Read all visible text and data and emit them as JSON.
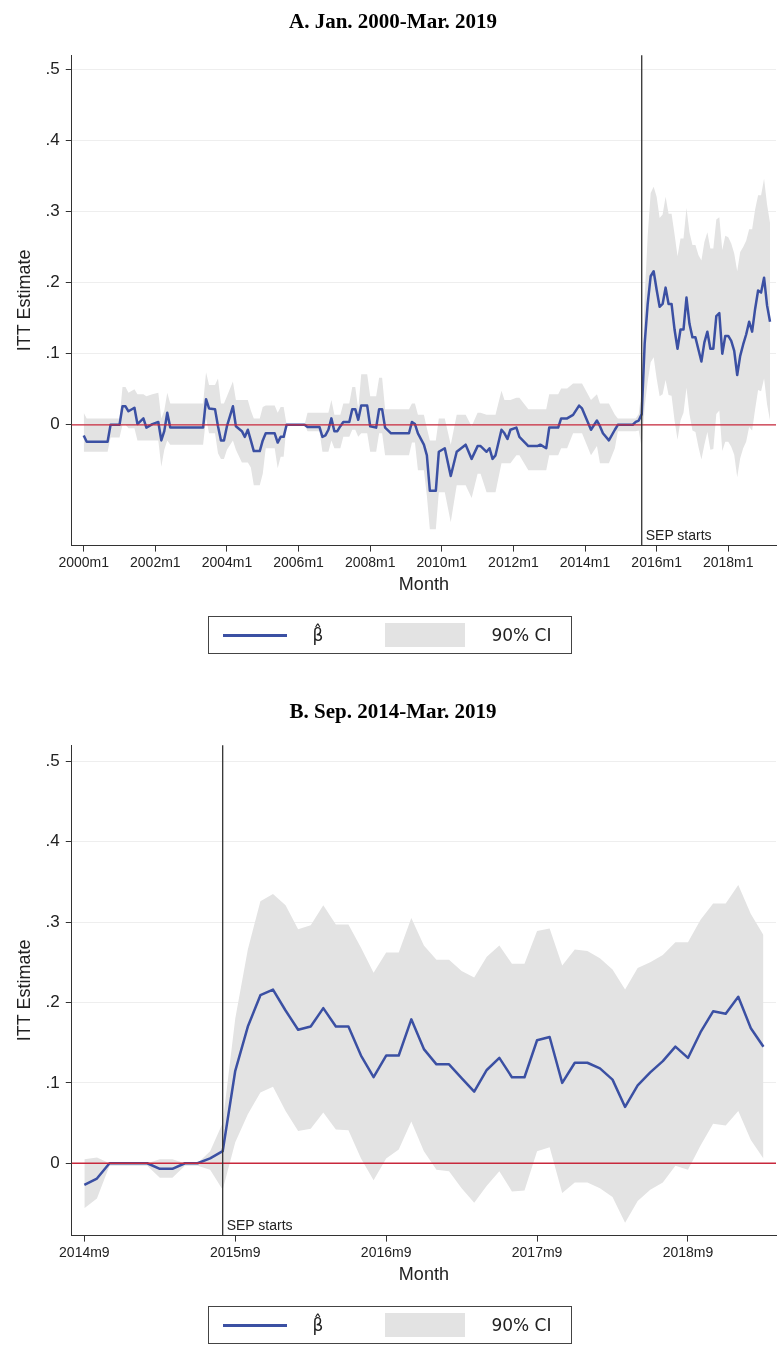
{
  "chart_data": [
    {
      "type": "line",
      "title": "A. Jan. 2000-Mar. 2019",
      "xlabel": "Month",
      "ylabel": "ITT Estimate",
      "grid": "y",
      "legend": "bottom",
      "annotations": [
        "90% CI"
      ],
      "xlim": [
        "1999-09",
        "2019-05"
      ],
      "ylim": [
        -0.17,
        0.52
      ],
      "xticks": [
        {
          "value": "2000-01",
          "label": "2000m1"
        },
        {
          "value": "2002-01",
          "label": "2002m1"
        },
        {
          "value": "2004-01",
          "label": "2004m1"
        },
        {
          "value": "2006-01",
          "label": "2006m1"
        },
        {
          "value": "2008-01",
          "label": "2008m1"
        },
        {
          "value": "2010-01",
          "label": "2010m1"
        },
        {
          "value": "2012-01",
          "label": "2012m1"
        },
        {
          "value": "2014-01",
          "label": "2014m1"
        },
        {
          "value": "2016-01",
          "label": "2016m1"
        },
        {
          "value": "2018-01",
          "label": "2018m1"
        }
      ],
      "yticks": [
        {
          "value": 0,
          "label": "0"
        },
        {
          "value": 0.1,
          "label": ".1"
        },
        {
          "value": 0.2,
          "label": ".2"
        },
        {
          "value": 0.3,
          "label": ".3"
        },
        {
          "value": 0.4,
          "label": ".4"
        },
        {
          "value": 0.5,
          "label": ".5"
        }
      ],
      "ref_lines": [
        {
          "axis": "y",
          "value": 0,
          "color": "#c8283c"
        },
        {
          "axis": "x",
          "value": "2015-08",
          "label": "SEP starts",
          "color": "#333333"
        }
      ],
      "series": [
        {
          "name": "β̂",
          "type": "line",
          "color": "#3b50a3",
          "x": [
            "2000-01",
            "2000-02",
            "2000-09",
            "2000-10",
            "2001-01",
            "2001-02",
            "2001-03",
            "2001-04",
            "2001-06",
            "2001-07",
            "2001-09",
            "2001-10",
            "2001-12",
            "2002-02",
            "2002-03",
            "2002-04",
            "2002-05",
            "2002-06",
            "2003-05",
            "2003-06",
            "2003-07",
            "2003-09",
            "2003-10",
            "2003-11",
            "2003-12",
            "2004-01",
            "2004-03",
            "2004-04",
            "2004-06",
            "2004-07",
            "2004-08",
            "2004-09",
            "2004-10",
            "2004-12",
            "2005-01",
            "2005-02",
            "2005-05",
            "2005-06",
            "2005-07",
            "2005-08",
            "2005-09",
            "2006-03",
            "2006-04",
            "2006-08",
            "2006-09",
            "2006-10",
            "2006-11",
            "2006-12",
            "2007-01",
            "2007-02",
            "2007-03",
            "2007-04",
            "2007-06",
            "2007-07",
            "2007-08",
            "2007-09",
            "2007-10",
            "2007-12",
            "2008-01",
            "2008-03",
            "2008-04",
            "2008-05",
            "2008-06",
            "2008-08",
            "2009-02",
            "2009-03",
            "2009-04",
            "2009-05",
            "2009-07",
            "2009-08",
            "2009-09",
            "2009-11",
            "2009-12",
            "2010-02",
            "2010-04",
            "2010-06",
            "2010-09",
            "2010-11",
            "2011-01",
            "2011-02",
            "2011-04",
            "2011-05",
            "2011-06",
            "2011-07",
            "2011-09",
            "2011-10",
            "2011-11",
            "2011-12",
            "2012-02",
            "2012-03",
            "2012-06",
            "2012-09",
            "2012-10",
            "2012-12",
            "2013-01",
            "2013-04",
            "2013-05",
            "2013-07",
            "2013-09",
            "2013-11",
            "2013-12",
            "2014-03",
            "2014-05",
            "2014-06",
            "2014-07",
            "2014-09",
            "2014-11",
            "2014-12",
            "2015-05",
            "2015-06",
            "2015-07",
            "2015-08",
            "2015-09",
            "2015-10",
            "2015-11",
            "2015-12",
            "2016-01",
            "2016-02",
            "2016-03",
            "2016-04",
            "2016-05",
            "2016-06",
            "2016-07",
            "2016-08",
            "2016-09",
            "2016-10",
            "2016-11",
            "2016-12",
            "2017-01",
            "2017-02",
            "2017-03",
            "2017-04",
            "2017-05",
            "2017-06",
            "2017-07",
            "2017-08",
            "2017-09",
            "2017-10",
            "2017-11",
            "2017-12",
            "2018-01",
            "2018-02",
            "2018-03",
            "2018-04",
            "2018-05",
            "2018-06",
            "2018-07",
            "2018-08",
            "2018-09",
            "2018-10",
            "2018-11",
            "2018-12",
            "2019-01",
            "2019-02",
            "2019-03"
          ],
          "values": [
            -0.015,
            -0.024,
            -0.024,
            0,
            0,
            0.026,
            0.026,
            0.019,
            0.024,
            0.001,
            0.009,
            -0.004,
            0.001,
            0.004,
            -0.022,
            -0.009,
            0.017,
            -0.004,
            -0.004,
            0.036,
            0.023,
            0.022,
            -0.002,
            -0.022,
            -0.022,
            -0.002,
            0.026,
            -0.002,
            -0.009,
            -0.017,
            -0.007,
            -0.022,
            -0.037,
            -0.037,
            -0.022,
            -0.012,
            -0.012,
            -0.025,
            -0.017,
            -0.017,
            0,
            0,
            -0.003,
            -0.003,
            -0.017,
            -0.015,
            -0.007,
            0.009,
            -0.009,
            -0.009,
            -0.002,
            0.004,
            0.004,
            0.022,
            0.022,
            0.007,
            0.027,
            0.027,
            -0.002,
            -0.004,
            0.022,
            0.022,
            -0.004,
            -0.012,
            -0.012,
            0.004,
            0.001,
            -0.012,
            -0.028,
            -0.043,
            -0.093,
            -0.093,
            -0.038,
            -0.033,
            -0.072,
            -0.038,
            -0.028,
            -0.048,
            -0.03,
            -0.03,
            -0.038,
            -0.033,
            -0.048,
            -0.043,
            -0.007,
            -0.012,
            -0.02,
            -0.007,
            -0.004,
            -0.017,
            -0.03,
            -0.03,
            -0.028,
            -0.033,
            -0.004,
            -0.004,
            0.009,
            0.009,
            0.014,
            0.027,
            0.023,
            -0.007,
            0.006,
            -0.002,
            -0.012,
            -0.022,
            -0.007,
            0,
            0,
            0.004,
            0.006,
            0.015,
            0.115,
            0.17,
            0.209,
            0.216,
            0.19,
            0.166,
            0.17,
            0.193,
            0.17,
            0.17,
            0.134,
            0.107,
            0.134,
            0.134,
            0.179,
            0.142,
            0.123,
            0.123,
            0.106,
            0.089,
            0.116,
            0.131,
            0.107,
            0.107,
            0.153,
            0.157,
            0.1,
            0.125,
            0.125,
            0.118,
            0.104,
            0.07,
            0.097,
            0.113,
            0.127,
            0.145,
            0.131,
            0.163,
            0.189,
            0.186,
            0.207,
            0.168,
            0.145
          ],
          "lower": [
            -0.038,
            -0.038,
            -0.038,
            -0.018,
            -0.018,
            0,
            0,
            -0.005,
            -0.005,
            -0.022,
            -0.022,
            -0.022,
            -0.022,
            -0.022,
            -0.059,
            -0.035,
            -0.022,
            -0.028,
            -0.028,
            0.009,
            -0.012,
            -0.012,
            -0.04,
            -0.048,
            -0.048,
            -0.035,
            -0.022,
            -0.035,
            -0.053,
            -0.053,
            -0.053,
            -0.06,
            -0.085,
            -0.085,
            -0.069,
            -0.033,
            -0.033,
            -0.061,
            -0.045,
            -0.045,
            0,
            0,
            -0.009,
            -0.009,
            -0.038,
            -0.038,
            -0.038,
            -0.022,
            -0.033,
            -0.033,
            -0.033,
            -0.017,
            -0.017,
            -0.007,
            -0.007,
            -0.017,
            -0.012,
            -0.012,
            -0.038,
            -0.038,
            -0.012,
            -0.012,
            -0.043,
            -0.043,
            -0.043,
            -0.025,
            -0.025,
            -0.064,
            -0.064,
            -0.1,
            -0.147,
            -0.147,
            -0.095,
            -0.095,
            -0.137,
            -0.085,
            -0.085,
            -0.103,
            -0.069,
            -0.069,
            -0.095,
            -0.095,
            -0.095,
            -0.095,
            -0.054,
            -0.054,
            -0.054,
            -0.054,
            -0.043,
            -0.043,
            -0.064,
            -0.064,
            -0.064,
            -0.064,
            -0.043,
            -0.043,
            -0.033,
            -0.033,
            -0.012,
            -0.012,
            -0.012,
            -0.043,
            -0.03,
            -0.054,
            -0.054,
            -0.054,
            -0.033,
            -0.009,
            -0.009,
            -0.009,
            -0.008,
            -0.033,
            0.026,
            0.061,
            0.088,
            0.095,
            0.065,
            0.04,
            0.043,
            0.063,
            0.042,
            0.041,
            0.006,
            -0.021,
            0.006,
            0.017,
            0.052,
            0.015,
            -0.008,
            -0.01,
            -0.031,
            -0.049,
            -0.028,
            -0.01,
            -0.035,
            -0.034,
            0.015,
            0.02,
            -0.037,
            -0.024,
            -0.024,
            -0.031,
            -0.042,
            -0.074,
            -0.047,
            -0.033,
            -0.024,
            -0.003,
            -0.008,
            0.022,
            0.049,
            0.047,
            0.065,
            0.029,
            0.006
          ],
          "upper": [
            0.017,
            0.009,
            0.009,
            0.009,
            0.009,
            0.053,
            0.053,
            0.045,
            0.05,
            0.043,
            0.043,
            0.04,
            0.043,
            0.045,
            0.009,
            0.02,
            0.045,
            0.03,
            0.03,
            0.074,
            0.056,
            0.056,
            0.065,
            0.03,
            0.03,
            0.04,
            0.061,
            0.035,
            0.035,
            0.035,
            0.035,
            0.02,
            0.009,
            0.009,
            0.025,
            0.027,
            0.027,
            0.017,
            0.025,
            0.025,
            0,
            0,
            0.017,
            0.017,
            0.017,
            0.017,
            0.017,
            0.035,
            0.014,
            0.014,
            0.014,
            0.03,
            0.03,
            0.053,
            0.053,
            0.022,
            0.071,
            0.071,
            0.04,
            0.04,
            0.066,
            0.066,
            0.022,
            0.022,
            0.022,
            0.03,
            0.03,
            0.014,
            0.014,
            -0.005,
            -0.022,
            -0.022,
            0.009,
            0.009,
            -0.028,
            0.014,
            0.014,
            -0.002,
            0.017,
            0.017,
            0.014,
            0.014,
            0.014,
            0.014,
            0.048,
            0.035,
            0.035,
            0.035,
            0.038,
            0.038,
            0.022,
            0.022,
            0.022,
            0.022,
            0.043,
            0.043,
            0.051,
            0.051,
            0.058,
            0.058,
            0.058,
            0.035,
            0.043,
            0.03,
            0.03,
            0.03,
            0.014,
            0.009,
            0.009,
            0.009,
            0.015,
            0.05,
            0.18,
            0.266,
            0.326,
            0.335,
            0.321,
            0.291,
            0.296,
            0.321,
            0.297,
            0.297,
            0.268,
            0.237,
            0.262,
            0.262,
            0.305,
            0.271,
            0.253,
            0.253,
            0.239,
            0.231,
            0.257,
            0.271,
            0.248,
            0.248,
            0.289,
            0.292,
            0.246,
            0.266,
            0.264,
            0.255,
            0.241,
            0.216,
            0.243,
            0.25,
            0.259,
            0.275,
            0.275,
            0.303,
            0.323,
            0.323,
            0.346,
            0.31,
            0.284
          ]
        }
      ]
    },
    {
      "type": "line",
      "title": "B. Sep. 2014-Mar. 2019",
      "xlabel": "Month",
      "ylabel": "ITT Estimate",
      "grid": "y",
      "legend": "bottom",
      "annotations": [
        "90% CI"
      ],
      "xlim": [
        "2014-08",
        "2019-04"
      ],
      "ylim": [
        -0.09,
        0.52
      ],
      "xticks": [
        {
          "value": "2014-09",
          "label": "2014m9"
        },
        {
          "value": "2015-09",
          "label": "2015m9"
        },
        {
          "value": "2016-09",
          "label": "2016m9"
        },
        {
          "value": "2017-09",
          "label": "2017m9"
        },
        {
          "value": "2018-09",
          "label": "2018m9"
        }
      ],
      "yticks": [
        {
          "value": 0,
          "label": "0"
        },
        {
          "value": 0.1,
          "label": ".1"
        },
        {
          "value": 0.2,
          "label": ".2"
        },
        {
          "value": 0.3,
          "label": ".3"
        },
        {
          "value": 0.4,
          "label": ".4"
        },
        {
          "value": 0.5,
          "label": ".5"
        }
      ],
      "ref_lines": [
        {
          "axis": "y",
          "value": 0,
          "color": "#c8283c"
        },
        {
          "axis": "x",
          "value": "2015-08",
          "label": "SEP starts",
          "color": "#333333"
        }
      ],
      "series": [
        {
          "name": "β̂",
          "type": "line",
          "color": "#3b50a3",
          "x": [
            "2014-09",
            "2014-10",
            "2014-11",
            "2014-12",
            "2015-01",
            "2015-02",
            "2015-03",
            "2015-04",
            "2015-05",
            "2015-06",
            "2015-07",
            "2015-08",
            "2015-09",
            "2015-10",
            "2015-11",
            "2015-12",
            "2016-01",
            "2016-02",
            "2016-03",
            "2016-04",
            "2016-05",
            "2016-06",
            "2016-07",
            "2016-08",
            "2016-09",
            "2016-10",
            "2016-11",
            "2016-12",
            "2017-01",
            "2017-02",
            "2017-03",
            "2017-04",
            "2017-05",
            "2017-06",
            "2017-07",
            "2017-08",
            "2017-09",
            "2017-10",
            "2017-11",
            "2017-12",
            "2018-01",
            "2018-02",
            "2018-03",
            "2018-04",
            "2018-05",
            "2018-06",
            "2018-07",
            "2018-08",
            "2018-09",
            "2018-10",
            "2018-11",
            "2018-12",
            "2019-01",
            "2019-02",
            "2019-03"
          ],
          "values": [
            -0.027,
            -0.019,
            0,
            0,
            0,
            0,
            -0.007,
            -0.007,
            0,
            0,
            0.006,
            0.015,
            0.115,
            0.17,
            0.209,
            0.216,
            0.19,
            0.166,
            0.17,
            0.193,
            0.17,
            0.17,
            0.134,
            0.107,
            0.134,
            0.134,
            0.179,
            0.142,
            0.123,
            0.123,
            0.106,
            0.089,
            0.116,
            0.131,
            0.107,
            0.107,
            0.153,
            0.157,
            0.1,
            0.125,
            0.125,
            0.118,
            0.104,
            0.07,
            0.097,
            0.113,
            0.127,
            0.145,
            0.131,
            0.163,
            0.189,
            0.186,
            0.207,
            0.168,
            0.145
          ],
          "lower": [
            -0.056,
            -0.044,
            -0.003,
            -0.003,
            -0.003,
            -0.003,
            -0.018,
            -0.018,
            -0.003,
            -0.003,
            -0.008,
            -0.033,
            0.026,
            0.061,
            0.088,
            0.095,
            0.065,
            0.04,
            0.043,
            0.063,
            0.042,
            0.041,
            0.006,
            -0.021,
            0.006,
            0.017,
            0.052,
            0.015,
            -0.008,
            -0.01,
            -0.031,
            -0.049,
            -0.028,
            -0.01,
            -0.035,
            -0.034,
            0.015,
            0.02,
            -0.037,
            -0.024,
            -0.024,
            -0.031,
            -0.042,
            -0.074,
            -0.047,
            -0.033,
            -0.024,
            -0.003,
            -0.008,
            0.022,
            0.049,
            0.047,
            0.065,
            0.029,
            0.006
          ],
          "upper": [
            0.005,
            0.007,
            0,
            0,
            0,
            0,
            0.005,
            0.005,
            0,
            0,
            0.015,
            0.05,
            0.18,
            0.266,
            0.326,
            0.335,
            0.321,
            0.291,
            0.296,
            0.321,
            0.297,
            0.297,
            0.268,
            0.237,
            0.262,
            0.262,
            0.305,
            0.271,
            0.253,
            0.253,
            0.239,
            0.231,
            0.257,
            0.271,
            0.248,
            0.248,
            0.289,
            0.292,
            0.246,
            0.266,
            0.264,
            0.255,
            0.241,
            0.216,
            0.243,
            0.25,
            0.259,
            0.275,
            0.275,
            0.303,
            0.323,
            0.323,
            0.346,
            0.31,
            0.284
          ]
        }
      ]
    }
  ]
}
